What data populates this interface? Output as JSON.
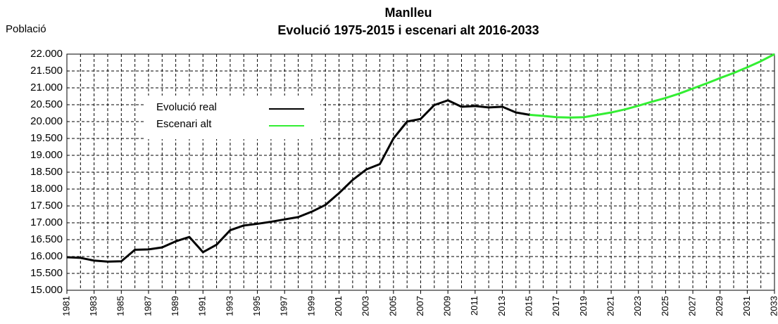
{
  "chart_data": {
    "type": "line",
    "title": "Manlleu",
    "subtitle": "Evolució 1975-2015 i escenari alt 2016-2033",
    "y_label": "Població",
    "x": [
      1981,
      1982,
      1983,
      1984,
      1985,
      1986,
      1987,
      1988,
      1989,
      1990,
      1991,
      1992,
      1993,
      1994,
      1995,
      1996,
      1997,
      1998,
      1999,
      2000,
      2001,
      2002,
      2003,
      2004,
      2005,
      2006,
      2007,
      2008,
      2009,
      2010,
      2011,
      2012,
      2013,
      2014,
      2015,
      2016,
      2017,
      2018,
      2019,
      2020,
      2021,
      2022,
      2023,
      2024,
      2025,
      2026,
      2027,
      2028,
      2029,
      2030,
      2031,
      2032,
      2033
    ],
    "series": [
      {
        "name": "Evolució real",
        "color": "#000000",
        "values": [
          15980,
          15960,
          15880,
          15850,
          15860,
          16200,
          16210,
          16270,
          16450,
          16580,
          16130,
          16350,
          16780,
          16920,
          16970,
          17030,
          17100,
          17170,
          17330,
          17530,
          17880,
          18270,
          18580,
          18740,
          19500,
          20000,
          20080,
          20490,
          20630,
          20440,
          20460,
          20420,
          20440,
          20270,
          20200,
          null,
          null,
          null,
          null,
          null,
          null,
          null,
          null,
          null,
          null,
          null,
          null,
          null,
          null,
          null,
          null,
          null,
          null
        ]
      },
      {
        "name": "Escenari alt",
        "color": "#33ee33",
        "values": [
          null,
          null,
          null,
          null,
          null,
          null,
          null,
          null,
          null,
          null,
          null,
          null,
          null,
          null,
          null,
          null,
          null,
          null,
          null,
          null,
          null,
          null,
          null,
          null,
          null,
          null,
          null,
          null,
          null,
          null,
          null,
          null,
          null,
          null,
          20200,
          20170,
          20130,
          20120,
          20130,
          20200,
          20270,
          20360,
          20470,
          20590,
          20700,
          20830,
          20980,
          21130,
          21290,
          21440,
          21610,
          21790,
          22000
        ]
      }
    ],
    "xlim": [
      1981,
      2033
    ],
    "xticks": [
      1981,
      1983,
      1985,
      1987,
      1989,
      1991,
      1993,
      1995,
      1997,
      1999,
      2001,
      2003,
      2005,
      2007,
      2009,
      2011,
      2013,
      2015,
      2017,
      2019,
      2021,
      2023,
      2025,
      2027,
      2029,
      2031,
      2033
    ],
    "ylim": [
      15000,
      22000
    ],
    "yticks": [
      {
        "value": 15000,
        "label": "15.000"
      },
      {
        "value": 15500,
        "label": "15.500"
      },
      {
        "value": 16000,
        "label": "16.000"
      },
      {
        "value": 16500,
        "label": "16.500"
      },
      {
        "value": 17000,
        "label": "17.000"
      },
      {
        "value": 17500,
        "label": "17.500"
      },
      {
        "value": 18000,
        "label": "18.000"
      },
      {
        "value": 18500,
        "label": "18.500"
      },
      {
        "value": 19000,
        "label": "19.000"
      },
      {
        "value": 19500,
        "label": "19.500"
      },
      {
        "value": 20000,
        "label": "20.000"
      },
      {
        "value": 20500,
        "label": "20.500"
      },
      {
        "value": 21000,
        "label": "21.000"
      },
      {
        "value": 21500,
        "label": "21.500"
      },
      {
        "value": 22000,
        "label": "22.000"
      }
    ],
    "grid": true
  }
}
